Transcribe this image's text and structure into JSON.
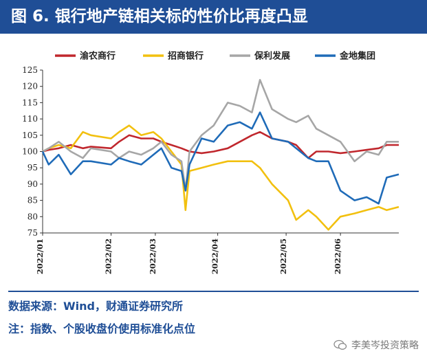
{
  "header": {
    "title": "图 6. 银行地产链相关标的性价比再度凸显"
  },
  "footer": {
    "source": "数据来源：Wind，财通证券研究所",
    "note": "注：指数、个股收盘价使用标准化点位",
    "watermark": "李美岑投资策略"
  },
  "colors": {
    "banner": "#1f4e96",
    "series": [
      "#c0272d",
      "#f2c00f",
      "#a6a6a6",
      "#1f6bb8"
    ]
  },
  "chart_data": {
    "type": "line",
    "title": "",
    "xlabel": "",
    "ylabel": "",
    "ylim": [
      75,
      125
    ],
    "yticks": [
      75,
      80,
      85,
      90,
      95,
      100,
      105,
      110,
      115,
      120,
      125
    ],
    "xlim": [
      "2022-01-04",
      "2022-06-30"
    ],
    "xticks": [
      {
        "date": "2022-01-04",
        "label": "2022/01"
      },
      {
        "date": "2022-02-07",
        "label": "2022/02"
      },
      {
        "date": "2022-03-01",
        "label": "2022/03"
      },
      {
        "date": "2022-04-01",
        "label": "2022/04"
      },
      {
        "date": "2022-05-05",
        "label": "2022/05"
      },
      {
        "date": "2022-06-01",
        "label": "2022/06"
      }
    ],
    "grid": false,
    "legend_position": "top",
    "series": [
      {
        "name": "渝农商行",
        "points": [
          [
            "2022-01-04",
            100
          ],
          [
            "2022-01-07",
            100.5
          ],
          [
            "2022-01-12",
            101
          ],
          [
            "2022-01-18",
            102
          ],
          [
            "2022-01-24",
            101
          ],
          [
            "2022-01-28",
            101.5
          ],
          [
            "2022-02-07",
            101
          ],
          [
            "2022-02-11",
            103
          ],
          [
            "2022-02-16",
            105
          ],
          [
            "2022-02-22",
            104
          ],
          [
            "2022-02-28",
            104
          ],
          [
            "2022-03-04",
            103
          ],
          [
            "2022-03-09",
            102
          ],
          [
            "2022-03-14",
            101
          ],
          [
            "2022-03-18",
            100
          ],
          [
            "2022-03-24",
            99.5
          ],
          [
            "2022-03-30",
            100
          ],
          [
            "2022-04-06",
            101
          ],
          [
            "2022-04-12",
            103
          ],
          [
            "2022-04-18",
            105
          ],
          [
            "2022-04-22",
            106
          ],
          [
            "2022-04-28",
            104
          ],
          [
            "2022-05-06",
            103
          ],
          [
            "2022-05-10",
            102
          ],
          [
            "2022-05-16",
            98
          ],
          [
            "2022-05-20",
            100
          ],
          [
            "2022-05-26",
            100
          ],
          [
            "2022-06-01",
            99.5
          ],
          [
            "2022-06-08",
            100
          ],
          [
            "2022-06-14",
            100.5
          ],
          [
            "2022-06-20",
            101
          ],
          [
            "2022-06-24",
            102
          ],
          [
            "2022-06-30",
            102
          ]
        ]
      },
      {
        "name": "招商银行",
        "points": [
          [
            "2022-01-04",
            100
          ],
          [
            "2022-01-07",
            101
          ],
          [
            "2022-01-12",
            102
          ],
          [
            "2022-01-18",
            101
          ],
          [
            "2022-01-24",
            106
          ],
          [
            "2022-01-28",
            105
          ],
          [
            "2022-02-07",
            104
          ],
          [
            "2022-02-11",
            106
          ],
          [
            "2022-02-16",
            108
          ],
          [
            "2022-02-22",
            105
          ],
          [
            "2022-02-28",
            106
          ],
          [
            "2022-03-04",
            104
          ],
          [
            "2022-03-09",
            100
          ],
          [
            "2022-03-14",
            96
          ],
          [
            "2022-03-16",
            82
          ],
          [
            "2022-03-18",
            94
          ],
          [
            "2022-03-24",
            95
          ],
          [
            "2022-03-30",
            96
          ],
          [
            "2022-04-06",
            97
          ],
          [
            "2022-04-12",
            97
          ],
          [
            "2022-04-18",
            97
          ],
          [
            "2022-04-22",
            95
          ],
          [
            "2022-04-28",
            90
          ],
          [
            "2022-05-06",
            85
          ],
          [
            "2022-05-10",
            79
          ],
          [
            "2022-05-16",
            82
          ],
          [
            "2022-05-20",
            80
          ],
          [
            "2022-05-26",
            76
          ],
          [
            "2022-06-01",
            80
          ],
          [
            "2022-06-08",
            81
          ],
          [
            "2022-06-14",
            82
          ],
          [
            "2022-06-20",
            83
          ],
          [
            "2022-06-24",
            82
          ],
          [
            "2022-06-30",
            83
          ]
        ]
      },
      {
        "name": "保利发展",
        "points": [
          [
            "2022-01-04",
            100
          ],
          [
            "2022-01-07",
            101
          ],
          [
            "2022-01-12",
            103
          ],
          [
            "2022-01-18",
            100
          ],
          [
            "2022-01-24",
            98
          ],
          [
            "2022-01-28",
            101
          ],
          [
            "2022-02-07",
            100
          ],
          [
            "2022-02-11",
            98
          ],
          [
            "2022-02-16",
            100
          ],
          [
            "2022-02-22",
            99
          ],
          [
            "2022-02-28",
            101
          ],
          [
            "2022-03-04",
            103
          ],
          [
            "2022-03-09",
            99
          ],
          [
            "2022-03-14",
            97
          ],
          [
            "2022-03-16",
            88
          ],
          [
            "2022-03-18",
            100
          ],
          [
            "2022-03-24",
            105
          ],
          [
            "2022-03-30",
            108
          ],
          [
            "2022-04-06",
            115
          ],
          [
            "2022-04-12",
            114
          ],
          [
            "2022-04-18",
            112
          ],
          [
            "2022-04-22",
            122
          ],
          [
            "2022-04-28",
            113
          ],
          [
            "2022-05-06",
            110
          ],
          [
            "2022-05-10",
            109
          ],
          [
            "2022-05-16",
            111
          ],
          [
            "2022-05-20",
            107
          ],
          [
            "2022-05-26",
            105
          ],
          [
            "2022-06-01",
            103
          ],
          [
            "2022-06-08",
            97
          ],
          [
            "2022-06-14",
            100
          ],
          [
            "2022-06-20",
            99
          ],
          [
            "2022-06-24",
            103
          ],
          [
            "2022-06-30",
            103
          ]
        ]
      },
      {
        "name": "金地集团",
        "points": [
          [
            "2022-01-04",
            100
          ],
          [
            "2022-01-07",
            96
          ],
          [
            "2022-01-12",
            99
          ],
          [
            "2022-01-18",
            93
          ],
          [
            "2022-01-24",
            97
          ],
          [
            "2022-01-28",
            97
          ],
          [
            "2022-02-07",
            96
          ],
          [
            "2022-02-11",
            98
          ],
          [
            "2022-02-16",
            97
          ],
          [
            "2022-02-22",
            96
          ],
          [
            "2022-02-28",
            99
          ],
          [
            "2022-03-04",
            101
          ],
          [
            "2022-03-09",
            95
          ],
          [
            "2022-03-14",
            94
          ],
          [
            "2022-03-16",
            88
          ],
          [
            "2022-03-18",
            96
          ],
          [
            "2022-03-24",
            104
          ],
          [
            "2022-03-30",
            103
          ],
          [
            "2022-04-06",
            108
          ],
          [
            "2022-04-12",
            109
          ],
          [
            "2022-04-18",
            107
          ],
          [
            "2022-04-22",
            112
          ],
          [
            "2022-04-28",
            104
          ],
          [
            "2022-05-06",
            103
          ],
          [
            "2022-05-10",
            101
          ],
          [
            "2022-05-16",
            98
          ],
          [
            "2022-05-20",
            97
          ],
          [
            "2022-05-26",
            97
          ],
          [
            "2022-06-01",
            88
          ],
          [
            "2022-06-08",
            85
          ],
          [
            "2022-06-14",
            86
          ],
          [
            "2022-06-20",
            84
          ],
          [
            "2022-06-24",
            92
          ],
          [
            "2022-06-30",
            93
          ]
        ]
      }
    ]
  }
}
